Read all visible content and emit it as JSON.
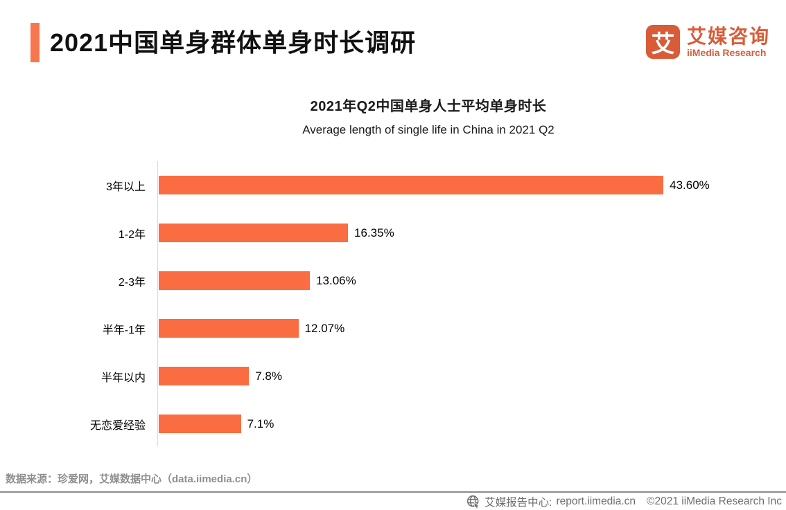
{
  "header": {
    "title": "2021中国单身群体单身时长调研",
    "accent_color": "#F8764F",
    "logo": {
      "mark": "艾",
      "name_cn": "艾媒咨询",
      "name_en": "iiMedia Research",
      "brand_color": "#D85C38"
    }
  },
  "chart": {
    "title": "2021年Q2中国单身人士平均单身时长",
    "subtitle": "Average length of single life in China in 2021 Q2"
  },
  "chart_data": {
    "type": "bar",
    "orientation": "horizontal",
    "title": "2021年Q2中国单身人士平均单身时长",
    "subtitle": "Average length of single life in China in 2021 Q2",
    "categories": [
      "3年以上",
      "1-2年",
      "2-3年",
      "半年-1年",
      "半年以内",
      "无恋爱经验"
    ],
    "values": [
      43.6,
      16.35,
      13.06,
      12.07,
      7.8,
      7.1
    ],
    "value_labels": [
      "43.60%",
      "16.35%",
      "13.06%",
      "12.07%",
      "7.8%",
      "7.1%"
    ],
    "unit": "%",
    "xlabel": "",
    "ylabel": "",
    "xlim": [
      0,
      50
    ],
    "bar_color": "#FA6C41",
    "axis_line_color": "#D9D9D9",
    "grid": false,
    "legend": false,
    "sort_order": "descending"
  },
  "footer": {
    "source": "数据来源：珍爱网，艾媒数据中心（data.iimedia.cn）",
    "report_center_icon": "globe-cursor-icon",
    "report_center_label": "艾媒报告中心:",
    "report_center_url": "report.iimedia.cn",
    "copyright": "©2021  iiMedia Research  Inc"
  }
}
